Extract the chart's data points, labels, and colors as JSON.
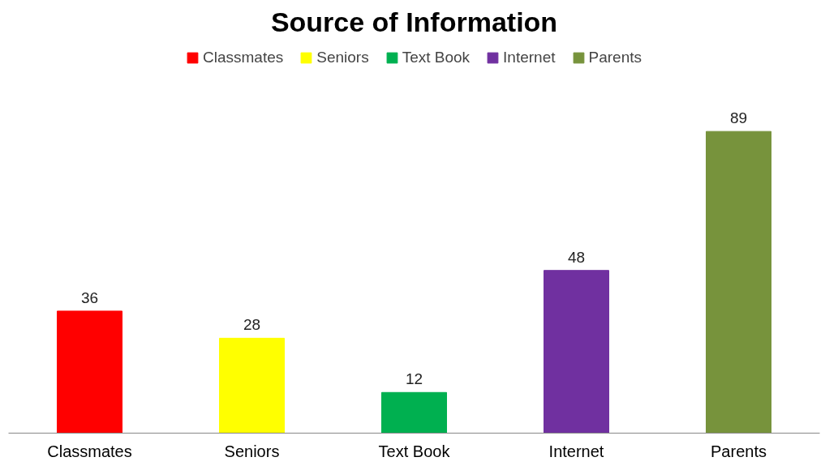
{
  "chart_data": {
    "type": "bar",
    "title": "Source of Information",
    "categories": [
      "Classmates",
      "Seniors",
      "Text Book",
      "Internet",
      "Parents"
    ],
    "series": [
      {
        "name": "Classmates",
        "color": "#ff0000",
        "values": [
          36,
          null,
          null,
          null,
          null
        ]
      },
      {
        "name": "Seniors",
        "color": "#ffff00",
        "values": [
          null,
          28,
          null,
          null,
          null
        ]
      },
      {
        "name": "Text Book",
        "color": "#00b050",
        "values": [
          null,
          null,
          12,
          null,
          null
        ]
      },
      {
        "name": "Internet",
        "color": "#7030a0",
        "values": [
          null,
          null,
          null,
          48,
          null
        ]
      },
      {
        "name": "Parents",
        "color": "#77933c",
        "values": [
          null,
          null,
          null,
          null,
          89
        ]
      }
    ],
    "stacked": true,
    "data_labels": true,
    "legend": "top",
    "grid": false
  }
}
